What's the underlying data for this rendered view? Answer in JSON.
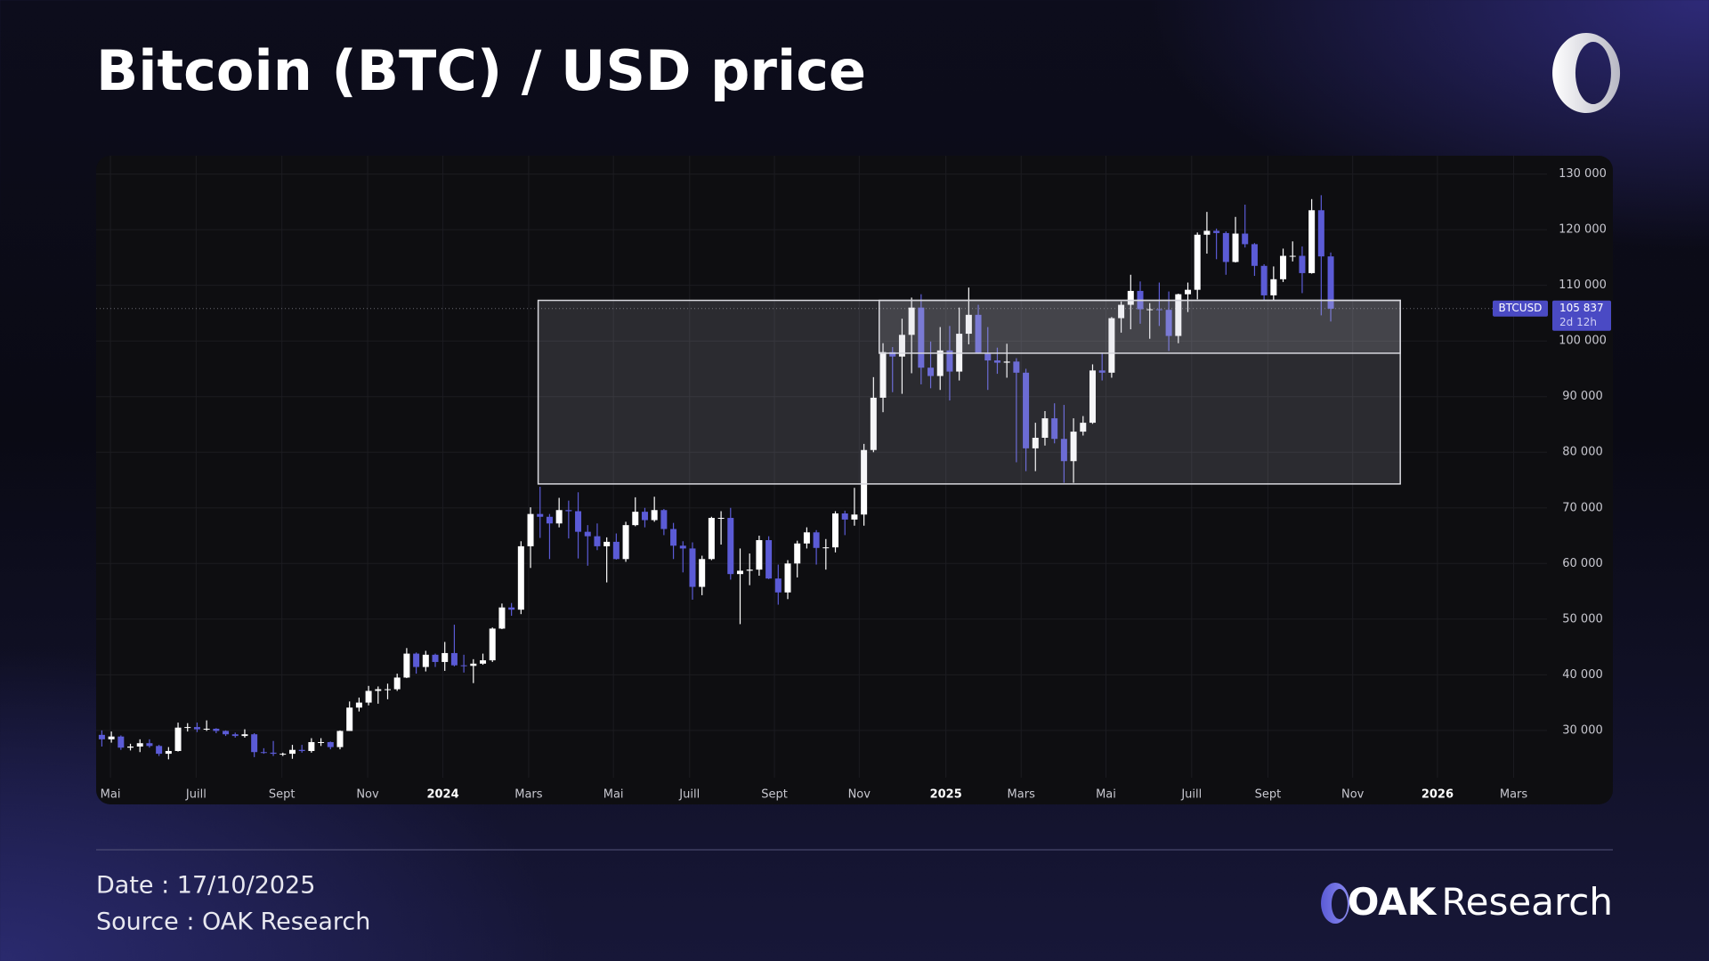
{
  "chart_data": {
    "type": "candlestick",
    "title": "Bitcoin (BTC) / USD price",
    "symbol": "BTCUSD",
    "countdown": "2d 12h",
    "last_price": {
      "value": 105837,
      "label": "105 837"
    },
    "up_color": "#ffffff",
    "down_color": "#5b5bd6",
    "grid": true,
    "xlim": [
      -0.6,
      151.7
    ],
    "xticks": [
      {
        "value": 0.9,
        "label": "Mai"
      },
      {
        "value": 9.9,
        "label": "Juill"
      },
      {
        "value": 18.9,
        "label": "Sept"
      },
      {
        "value": 27.9,
        "label": "Nov"
      },
      {
        "value": 35.8,
        "label": "2024"
      },
      {
        "value": 44.8,
        "label": "Mars"
      },
      {
        "value": 53.7,
        "label": "Mai"
      },
      {
        "value": 61.7,
        "label": "Juill"
      },
      {
        "value": 70.6,
        "label": "Sept"
      },
      {
        "value": 79.5,
        "label": "Nov"
      },
      {
        "value": 88.6,
        "label": "2025"
      },
      {
        "value": 96.5,
        "label": "Mars"
      },
      {
        "value": 105.4,
        "label": "Mai"
      },
      {
        "value": 114.4,
        "label": "Juill"
      },
      {
        "value": 122.4,
        "label": "Sept"
      },
      {
        "value": 131.3,
        "label": "Nov"
      },
      {
        "value": 140.2,
        "label": "2026"
      },
      {
        "value": 148.2,
        "label": "Mars"
      }
    ],
    "ylim": [
      16700,
      133300
    ],
    "yticks": [
      {
        "value": 30000,
        "label": "30 000"
      },
      {
        "value": 40000,
        "label": "40 000"
      },
      {
        "value": 50000,
        "label": "50 000"
      },
      {
        "value": 60000,
        "label": "60 000"
      },
      {
        "value": 70000,
        "label": "70 000"
      },
      {
        "value": 80000,
        "label": "80 000"
      },
      {
        "value": 90000,
        "label": "90 000"
      },
      {
        "value": 100000,
        "label": "100 000"
      },
      {
        "value": 110000,
        "label": "110 000"
      },
      {
        "value": 120000,
        "label": "120 000"
      },
      {
        "value": 130000,
        "label": "130 000"
      }
    ],
    "zones": [
      {
        "x": [
          45.8,
          136.3
        ],
        "y": [
          74300,
          107300
        ]
      },
      {
        "x": [
          81.6,
          136.3
        ],
        "y": [
          97800,
          107300
        ]
      }
    ],
    "open": [
      29200,
      28400,
      28900,
      26900,
      27100,
      27700,
      27200,
      25800,
      26300,
      30500,
      30600,
      30200,
      30300,
      29900,
      29300,
      29000,
      29300,
      26100,
      26000,
      25800,
      25800,
      26500,
      26300,
      27900,
      27900,
      27000,
      29900,
      34100,
      35000,
      37100,
      37400,
      37400,
      39500,
      43800,
      41400,
      43600,
      42300,
      43900,
      41700,
      41600,
      42000,
      42600,
      48300,
      52100,
      51700,
      63100,
      68900,
      68400,
      67200,
      69600,
      69400,
      65700,
      64900,
      63100,
      63900,
      60800,
      66900,
      69300,
      67800,
      69600,
      66200,
      63200,
      62700,
      55800,
      60800,
      68200,
      68200,
      58100,
      58700,
      58900,
      64200,
      57300,
      54800,
      60000,
      63600,
      65600,
      62800,
      62900,
      69000,
      67900,
      68800,
      80400,
      89800,
      98000,
      97200,
      101100,
      106000,
      95200,
      93700,
      98300,
      94500,
      101300,
      104700,
      97700,
      96500,
      96100,
      96300,
      94300,
      80700,
      82600,
      86100,
      82400,
      78400,
      83700,
      85300,
      94700,
      94300,
      104100,
      106500,
      109000,
      105700,
      105700,
      105600,
      100900,
      108400,
      109200,
      119100,
      119800,
      119400,
      114200,
      119300,
      117400,
      113500,
      108200,
      111100,
      115300,
      115300,
      112200,
      123500,
      115200
    ],
    "high": [
      30000,
      29800,
      29100,
      27600,
      28400,
      28400,
      27400,
      27000,
      31400,
      31300,
      31400,
      31800,
      30400,
      30000,
      29600,
      30200,
      29500,
      26800,
      28100,
      26000,
      27400,
      27400,
      28600,
      28600,
      28000,
      30000,
      35200,
      35900,
      38000,
      37900,
      38400,
      40200,
      44800,
      44000,
      44300,
      43800,
      45900,
      49000,
      43600,
      42800,
      43800,
      48500,
      52800,
      52900,
      64000,
      70100,
      73800,
      68900,
      71800,
      71300,
      72800,
      66900,
      67200,
      64700,
      65400,
      67500,
      71900,
      70000,
      72000,
      69800,
      67300,
      64000,
      63800,
      61400,
      68400,
      69400,
      70000,
      62700,
      61800,
      65000,
      64900,
      59800,
      60600,
      64100,
      66500,
      66000,
      64400,
      69400,
      69500,
      73600,
      81500,
      93500,
      99600,
      98900,
      104000,
      107800,
      108400,
      99900,
      102500,
      102700,
      106000,
      109600,
      106500,
      102500,
      98800,
      99500,
      96900,
      95000,
      85300,
      87400,
      88800,
      88500,
      86100,
      86500,
      95800,
      97900,
      104300,
      107100,
      111900,
      110700,
      106800,
      110500,
      108900,
      108500,
      110500,
      119500,
      123200,
      120200,
      119700,
      122300,
      124500,
      117600,
      113800,
      113400,
      116600,
      117900,
      117000,
      125500,
      126200,
      115900
    ],
    "low": [
      27100,
      27800,
      26500,
      26400,
      26100,
      26900,
      25400,
      24800,
      26200,
      29800,
      29700,
      29900,
      29500,
      29000,
      28700,
      28700,
      25200,
      25800,
      25400,
      25400,
      24900,
      26000,
      26000,
      27200,
      26600,
      26600,
      29900,
      33400,
      34500,
      34800,
      35600,
      37100,
      39400,
      40200,
      40600,
      41400,
      40700,
      41500,
      40400,
      38500,
      41800,
      42300,
      48200,
      50600,
      50900,
      59200,
      64600,
      60800,
      66500,
      64500,
      60900,
      59600,
      62400,
      56600,
      60700,
      60300,
      66700,
      66500,
      67500,
      65100,
      60800,
      58400,
      53500,
      54300,
      60600,
      63400,
      57100,
      49100,
      56100,
      57800,
      57200,
      52600,
      53600,
      57500,
      62700,
      59800,
      58900,
      62000,
      65100,
      66800,
      66800,
      80000,
      87200,
      90800,
      90500,
      94200,
      92200,
      91500,
      91200,
      89300,
      92900,
      99400,
      97700,
      91200,
      94100,
      93400,
      78200,
      76600,
      76600,
      81200,
      81600,
      74500,
      74500,
      83000,
      85100,
      92900,
      93400,
      101500,
      102100,
      103100,
      100400,
      102700,
      98200,
      99600,
      105200,
      107500,
      115700,
      114700,
      111900,
      114100,
      116800,
      111700,
      107300,
      107300,
      110600,
      114300,
      108600,
      112100,
      104600,
      103500
    ],
    "close": [
      28400,
      28900,
      26900,
      27100,
      27700,
      27200,
      25800,
      26300,
      30500,
      30600,
      30200,
      30300,
      29900,
      29300,
      29000,
      29300,
      26100,
      26000,
      25800,
      25800,
      26500,
      26300,
      27900,
      27900,
      27000,
      29900,
      34100,
      35000,
      37100,
      37400,
      37400,
      39500,
      43800,
      41400,
      43600,
      42300,
      43900,
      41700,
      41600,
      42000,
      42600,
      48300,
      52100,
      51700,
      63100,
      68900,
      68400,
      67200,
      69600,
      69400,
      65700,
      64900,
      63100,
      63900,
      60800,
      66900,
      69300,
      67800,
      69600,
      66200,
      63200,
      62700,
      55800,
      60800,
      68200,
      68200,
      58100,
      58700,
      58900,
      64200,
      57300,
      54800,
      60000,
      63600,
      65600,
      62800,
      62900,
      69000,
      67900,
      68800,
      80400,
      89800,
      98000,
      97200,
      101100,
      106000,
      95200,
      93700,
      98300,
      94500,
      101300,
      104700,
      97700,
      96500,
      96100,
      96300,
      94300,
      80700,
      82600,
      86100,
      82400,
      78400,
      83700,
      85300,
      94700,
      94300,
      104100,
      106500,
      109000,
      105700,
      105700,
      105600,
      100900,
      108400,
      109200,
      119100,
      119800,
      119400,
      114200,
      119300,
      117400,
      113500,
      108200,
      111100,
      115300,
      115300,
      112200,
      123500,
      115200,
      105800
    ]
  },
  "footer": {
    "date": "Date : 17/10/2025",
    "source": "Source : OAK Research"
  },
  "brand": {
    "name": "OAK",
    "suffix": "Research"
  }
}
